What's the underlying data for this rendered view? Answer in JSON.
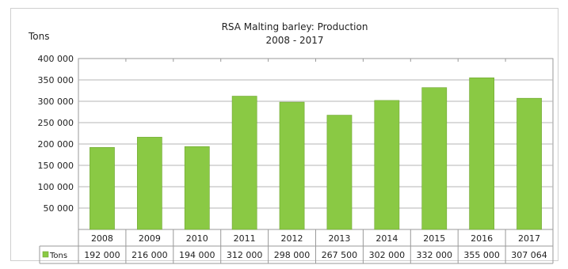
{
  "chart_data": {
    "type": "bar",
    "title": "RSA Malting barley: Production",
    "subtitle": "2008 - 2017",
    "ylabel": "Tons",
    "xlabel": "",
    "categories": [
      "2008",
      "2009",
      "2010",
      "2011",
      "2012",
      "2013",
      "2014",
      "2015",
      "2016",
      "2017"
    ],
    "series": [
      {
        "name": "Tons",
        "values": [
          192000,
          216000,
          194000,
          312000,
          298000,
          267500,
          302000,
          332000,
          355000,
          307064
        ],
        "value_labels": [
          "192 000",
          "216 000",
          "194 000",
          "312 000",
          "298 000",
          "267 500",
          "302 000",
          "332 000",
          "355 000",
          "307 064"
        ],
        "color": "#8ac944"
      }
    ],
    "ylim": [
      0,
      400000
    ],
    "yticks": [
      50000,
      100000,
      150000,
      200000,
      250000,
      300000,
      350000,
      400000
    ],
    "ytick_labels": [
      "50 000",
      "100 000",
      "150 000",
      "200 000",
      "250 000",
      "300 000",
      "350 000",
      "400 000"
    ],
    "grid": true,
    "legend": "data-table-left"
  }
}
